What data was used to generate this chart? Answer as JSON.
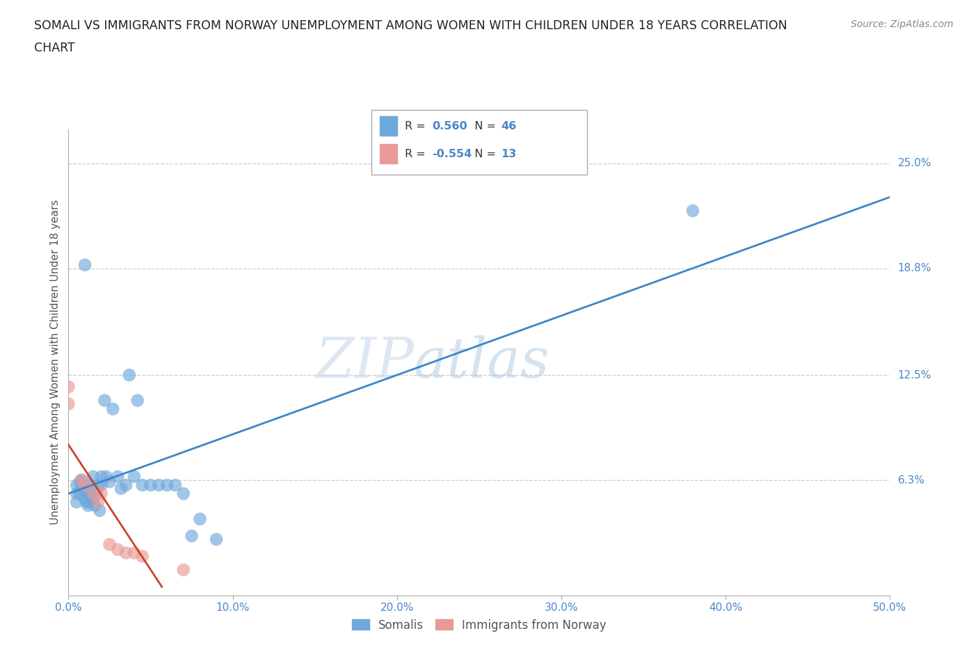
{
  "title_line1": "SOMALI VS IMMIGRANTS FROM NORWAY UNEMPLOYMENT AMONG WOMEN WITH CHILDREN UNDER 18 YEARS CORRELATION",
  "title_line2": "CHART",
  "source": "Source: ZipAtlas.com",
  "ylabel": "Unemployment Among Women with Children Under 18 years",
  "xlim": [
    0.0,
    0.5
  ],
  "ylim": [
    -0.005,
    0.27
  ],
  "xticks": [
    0.0,
    0.1,
    0.2,
    0.3,
    0.4,
    0.5
  ],
  "xticklabels": [
    "0.0%",
    "10.0%",
    "20.0%",
    "30.0%",
    "40.0%",
    "50.0%"
  ],
  "ytick_values": [
    0.063,
    0.125,
    0.188,
    0.25
  ],
  "ytick_labels": [
    "6.3%",
    "12.5%",
    "18.8%",
    "25.0%"
  ],
  "blue_color": "#6fa8dc",
  "pink_color": "#ea9999",
  "blue_line_color": "#3d85c8",
  "pink_line_color": "#cc4125",
  "legend_label1": "Somalis",
  "legend_label2": "Immigrants from Norway",
  "watermark_zip": "ZIP",
  "watermark_atlas": "atlas",
  "somali_x": [
    0.005,
    0.005,
    0.005,
    0.007,
    0.007,
    0.008,
    0.008,
    0.009,
    0.01,
    0.01,
    0.011,
    0.011,
    0.012,
    0.012,
    0.013,
    0.013,
    0.014,
    0.015,
    0.015,
    0.016,
    0.017,
    0.018,
    0.019,
    0.02,
    0.02,
    0.022,
    0.023,
    0.025,
    0.027,
    0.03,
    0.032,
    0.035,
    0.037,
    0.04,
    0.042,
    0.045,
    0.05,
    0.055,
    0.06,
    0.065,
    0.07,
    0.075,
    0.08,
    0.09,
    0.38,
    0.01
  ],
  "somali_y": [
    0.05,
    0.055,
    0.06,
    0.055,
    0.062,
    0.058,
    0.063,
    0.06,
    0.052,
    0.057,
    0.05,
    0.058,
    0.048,
    0.055,
    0.05,
    0.06,
    0.055,
    0.052,
    0.065,
    0.048,
    0.055,
    0.06,
    0.045,
    0.06,
    0.065,
    0.11,
    0.065,
    0.062,
    0.105,
    0.065,
    0.058,
    0.06,
    0.125,
    0.065,
    0.11,
    0.06,
    0.06,
    0.06,
    0.06,
    0.06,
    0.055,
    0.03,
    0.04,
    0.028,
    0.222,
    0.19
  ],
  "norway_x": [
    0.0,
    0.0,
    0.008,
    0.01,
    0.015,
    0.018,
    0.02,
    0.025,
    0.03,
    0.035,
    0.04,
    0.045,
    0.07
  ],
  "norway_y": [
    0.118,
    0.108,
    0.063,
    0.06,
    0.055,
    0.05,
    0.055,
    0.025,
    0.022,
    0.02,
    0.02,
    0.018,
    0.01
  ],
  "blue_intercept": 0.0,
  "blue_slope": 0.5,
  "pink_intercept": 0.085,
  "pink_slope": -1.0
}
